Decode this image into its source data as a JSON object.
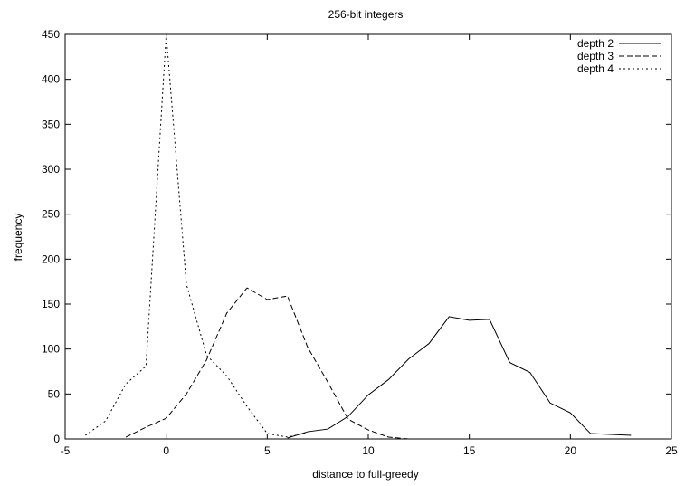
{
  "chart_data": {
    "type": "line",
    "title": "256-bit integers",
    "xlabel": "distance to full-greedy",
    "ylabel": "frequency",
    "xlim": [
      -5,
      25
    ],
    "ylim": [
      0,
      450
    ],
    "xticks": [
      -5,
      0,
      5,
      10,
      15,
      20,
      25
    ],
    "yticks": [
      0,
      50,
      100,
      150,
      200,
      250,
      300,
      350,
      400,
      450
    ],
    "grid": false,
    "legend_position": "top-right",
    "series": [
      {
        "name": "depth 2",
        "dash": "solid",
        "x": [
          6,
          7,
          8,
          9,
          10,
          11,
          12,
          13,
          14,
          15,
          16,
          17,
          18,
          19,
          20,
          21,
          22,
          23
        ],
        "y": [
          1,
          8,
          11,
          25,
          49,
          66,
          89,
          106,
          136,
          132,
          133,
          85,
          74,
          40,
          29,
          6,
          5,
          4
        ]
      },
      {
        "name": "depth 3",
        "dash": "dashed",
        "x": [
          -2,
          -1,
          0,
          1,
          2,
          3,
          4,
          5,
          6,
          7,
          8,
          9,
          10,
          11,
          12
        ],
        "y": [
          2,
          13,
          23,
          50,
          88,
          140,
          168,
          155,
          159,
          102,
          63,
          22,
          10,
          2,
          0
        ]
      },
      {
        "name": "depth 4",
        "dash": "dotted",
        "x": [
          -4,
          -3,
          -2,
          -1,
          0,
          1,
          2,
          3,
          4,
          5,
          6,
          7
        ],
        "y": [
          4,
          20,
          61,
          81,
          450,
          172,
          93,
          70,
          36,
          6,
          2,
          7
        ]
      }
    ]
  }
}
